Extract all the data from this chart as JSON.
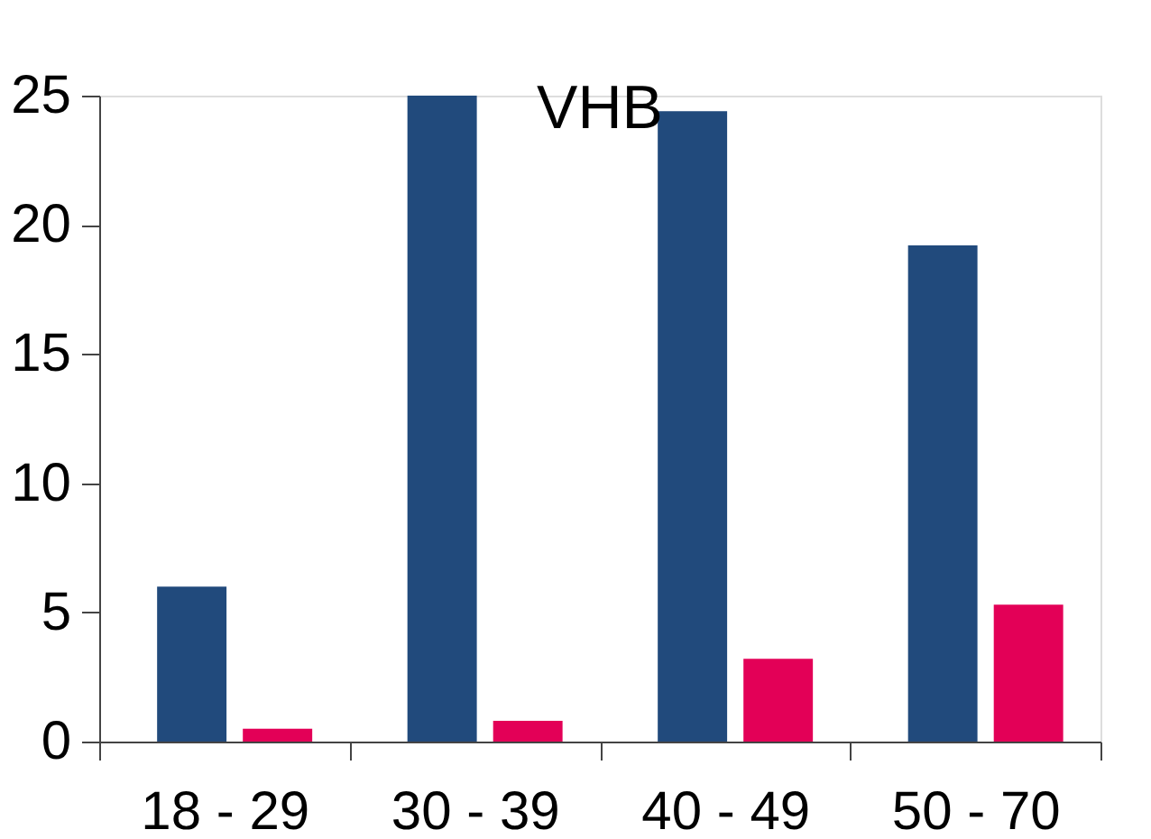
{
  "chart_data": {
    "type": "bar",
    "title": "VHB",
    "categories": [
      "18 - 29",
      "30 - 39",
      "40 - 49",
      "50 - 70"
    ],
    "series": [
      {
        "color": "#214a7c",
        "values": [
          6.0,
          25.0,
          24.4,
          19.2
        ]
      },
      {
        "color": "#e30057",
        "values": [
          0.5,
          0.8,
          3.2,
          5.3
        ]
      }
    ],
    "ylim": [
      0,
      25
    ],
    "yticks": [
      0,
      5,
      10,
      15,
      20,
      25
    ],
    "grid": false,
    "legend": false
  }
}
